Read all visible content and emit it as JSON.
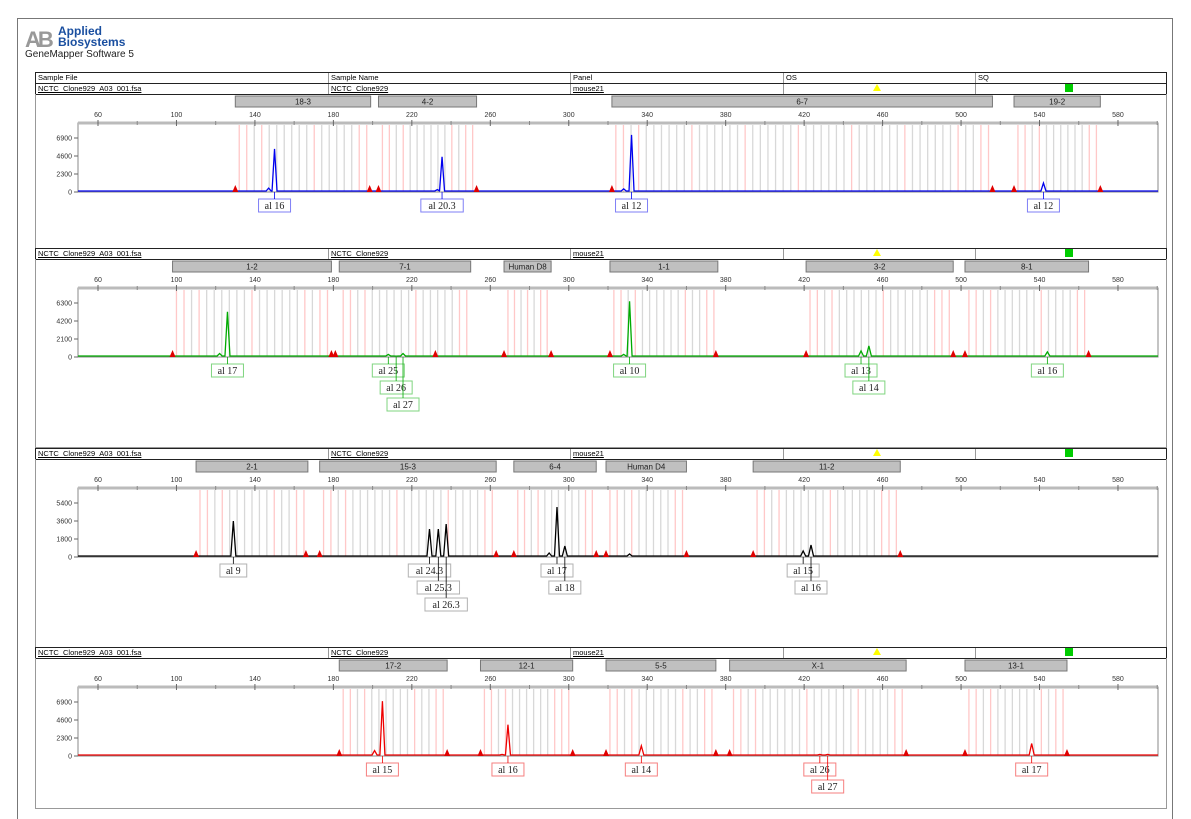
{
  "header": {
    "brand": "Applied Biosystems",
    "brand_line1": "Applied",
    "brand_line2": "Biosystems",
    "logo_letters": "AB",
    "software": "GeneMapper Software 5"
  },
  "columns": {
    "sample_file": "Sample File",
    "sample_name": "Sample Name",
    "panel": "Panel",
    "os": "OS",
    "sq": "SQ"
  },
  "colors": {
    "os_flag": "#ffff00",
    "sq_flag": "#00cc00",
    "bin_gray": "#d8d8d8",
    "bin_pink": "#ffc8c8",
    "marker": "#e00000"
  },
  "x_ticks": [
    60,
    100,
    140,
    180,
    220,
    260,
    300,
    340,
    380,
    420,
    460,
    500,
    540,
    580
  ],
  "panels": [
    {
      "sample_file": "NCTC_Clone929_A03_001.fsa",
      "sample_name": "NCTC_Clone929",
      "panel": "mouse21",
      "color": "#0000ee",
      "y_ticks": [
        0,
        2300,
        4600,
        6900
      ],
      "bins": [
        {
          "label": "18-3",
          "start": 130,
          "end": 199
        },
        {
          "label": "4-2",
          "start": 203,
          "end": 253
        },
        {
          "label": "6-7",
          "start": 322,
          "end": 516
        },
        {
          "label": "19-2",
          "start": 527,
          "end": 571
        }
      ],
      "markers": [
        130,
        198.5,
        203,
        253,
        322,
        516,
        527,
        571
      ],
      "peaks": [
        {
          "bp": 147,
          "h": 500
        },
        {
          "bp": 150,
          "h": 5500
        },
        {
          "bp": 233,
          "h": 300
        },
        {
          "bp": 235.4,
          "h": 4500
        },
        {
          "bp": 328,
          "h": 400
        },
        {
          "bp": 332,
          "h": 7300
        },
        {
          "bp": 542,
          "h": 1150
        }
      ],
      "alleles": [
        {
          "text": "al 16",
          "bp": 150,
          "row": 0
        },
        {
          "text": "al 20.3",
          "bp": 235.4,
          "row": 0
        },
        {
          "text": "al 12",
          "bp": 332,
          "row": 0
        },
        {
          "text": "al 12",
          "bp": 542,
          "row": 0
        }
      ]
    },
    {
      "sample_file": "NCTC_Clone929_A03_001.fsa",
      "sample_name": "NCTC_Clone929",
      "panel": "mouse21",
      "color": "#00aa00",
      "y_ticks": [
        0,
        2100,
        4200,
        6300
      ],
      "bins": [
        {
          "label": "1-2",
          "start": 98,
          "end": 179
        },
        {
          "label": "7-1",
          "start": 183,
          "end": 250
        },
        {
          "label": "Human D8",
          "start": 267,
          "end": 291
        },
        {
          "label": "1-1",
          "start": 321,
          "end": 376
        },
        {
          "label": "3-2",
          "start": 421,
          "end": 496
        },
        {
          "label": "8-1",
          "start": 502,
          "end": 565
        }
      ],
      "markers": [
        98,
        179,
        181,
        232,
        267,
        291,
        321,
        375,
        421,
        496,
        502,
        565
      ],
      "peaks": [
        {
          "bp": 122,
          "h": 400
        },
        {
          "bp": 126,
          "h": 5270
        },
        {
          "bp": 208,
          "h": 300
        },
        {
          "bp": 212,
          "h": 100
        },
        {
          "bp": 215.5,
          "h": 400
        },
        {
          "bp": 328,
          "h": 300
        },
        {
          "bp": 331,
          "h": 6500
        },
        {
          "bp": 449,
          "h": 700
        },
        {
          "bp": 453,
          "h": 1300
        },
        {
          "bp": 544,
          "h": 600
        }
      ],
      "alleles": [
        {
          "text": "al 17",
          "bp": 126,
          "row": 0
        },
        {
          "text": "al 25",
          "bp": 208,
          "row": 0
        },
        {
          "text": "al 26",
          "bp": 212,
          "row": 1
        },
        {
          "text": "al 27",
          "bp": 215.5,
          "row": 2
        },
        {
          "text": "al 10",
          "bp": 331,
          "row": 0
        },
        {
          "text": "al 13",
          "bp": 449,
          "row": 0
        },
        {
          "text": "al 14",
          "bp": 453,
          "row": 1
        },
        {
          "text": "al 16",
          "bp": 544,
          "row": 0
        }
      ]
    },
    {
      "sample_file": "NCTC_Clone929_A03_001.fsa",
      "sample_name": "NCTC_Clone929",
      "panel": "mouse21",
      "color": "#000000",
      "y_ticks": [
        0,
        1800,
        3600,
        5400
      ],
      "bins": [
        {
          "label": "2-1",
          "start": 110,
          "end": 167
        },
        {
          "label": "15-3",
          "start": 173,
          "end": 263
        },
        {
          "label": "6-4",
          "start": 272,
          "end": 314
        },
        {
          "label": "Human D4",
          "start": 319,
          "end": 360
        },
        {
          "label": "11-2",
          "start": 394,
          "end": 469
        }
      ],
      "markers": [
        110,
        166,
        173,
        263,
        272,
        314,
        319,
        360,
        394,
        469
      ],
      "peaks": [
        {
          "bp": 129,
          "h": 3600
        },
        {
          "bp": 229,
          "h": 2800
        },
        {
          "bp": 233.5,
          "h": 2800
        },
        {
          "bp": 237.5,
          "h": 3300
        },
        {
          "bp": 290,
          "h": 400
        },
        {
          "bp": 294,
          "h": 5000
        },
        {
          "bp": 298,
          "h": 1100
        },
        {
          "bp": 331,
          "h": 300
        },
        {
          "bp": 419.5,
          "h": 600
        },
        {
          "bp": 423.5,
          "h": 1200
        }
      ],
      "alleles": [
        {
          "text": "al 9",
          "bp": 129,
          "row": 0
        },
        {
          "text": "al 24.3",
          "bp": 229,
          "row": 0
        },
        {
          "text": "al 25.3",
          "bp": 233.5,
          "row": 1
        },
        {
          "text": "al 26.3",
          "bp": 237.5,
          "row": 2
        },
        {
          "text": "al 17",
          "bp": 294,
          "row": 0
        },
        {
          "text": "al 18",
          "bp": 298,
          "row": 1
        },
        {
          "text": "al 15",
          "bp": 419.5,
          "row": 0
        },
        {
          "text": "al 16",
          "bp": 423.5,
          "row": 1
        }
      ]
    },
    {
      "sample_file": "NCTC_Clone929_A03_001.fsa",
      "sample_name": "NCTC_Clone929",
      "panel": "mouse21",
      "color": "#ee0000",
      "y_ticks": [
        0,
        2300,
        4600,
        6900
      ],
      "bins": [
        {
          "label": "17-2",
          "start": 183,
          "end": 238
        },
        {
          "label": "12-1",
          "start": 255,
          "end": 302
        },
        {
          "label": "5-5",
          "start": 319,
          "end": 375
        },
        {
          "label": "X-1",
          "start": 382,
          "end": 472
        },
        {
          "label": "13-1",
          "start": 502,
          "end": 554
        }
      ],
      "markers": [
        183,
        238,
        255,
        302,
        319,
        375,
        382,
        472,
        502,
        554
      ],
      "peaks": [
        {
          "bp": 201,
          "h": 700
        },
        {
          "bp": 205,
          "h": 7000
        },
        {
          "bp": 266,
          "h": 200
        },
        {
          "bp": 269,
          "h": 4000
        },
        {
          "bp": 337,
          "h": 1300
        },
        {
          "bp": 428,
          "h": 200
        },
        {
          "bp": 432,
          "h": 200
        },
        {
          "bp": 536,
          "h": 1600
        }
      ],
      "alleles": [
        {
          "text": "al 15",
          "bp": 205,
          "row": 0
        },
        {
          "text": "al 16",
          "bp": 269,
          "row": 0
        },
        {
          "text": "al 14",
          "bp": 337,
          "row": 0
        },
        {
          "text": "al 26",
          "bp": 428,
          "row": 0
        },
        {
          "text": "al 27",
          "bp": 432,
          "row": 1
        },
        {
          "text": "al 17",
          "bp": 536,
          "row": 0
        }
      ]
    }
  ]
}
